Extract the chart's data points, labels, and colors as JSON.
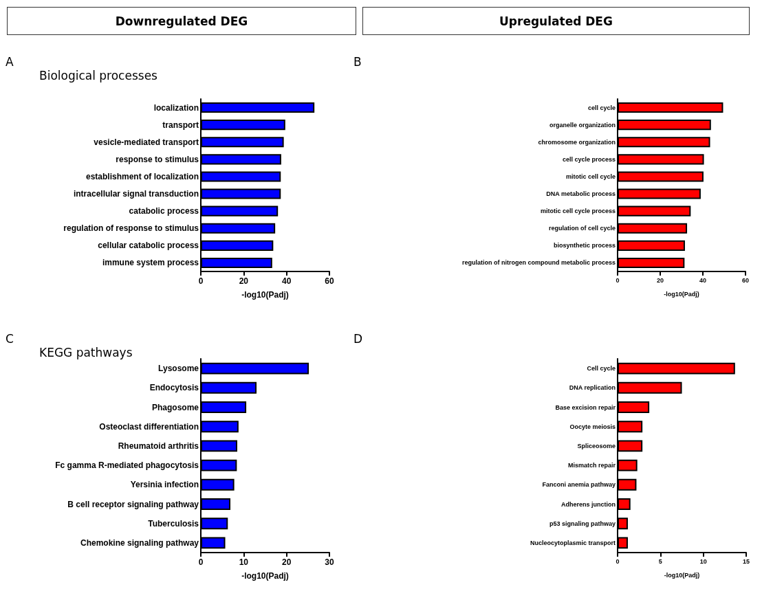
{
  "chart_data": [
    {
      "type": "bar",
      "orientation": "horizontal",
      "title": "Biological processes",
      "annotations": [
        "A",
        "Downregulated DEG"
      ],
      "xlabel": "-log10(Padj)",
      "categories": [
        "localization",
        "transport",
        "vesicle-mediated transport",
        "response to stimulus",
        "establishment of localization",
        "intracellular signal transduction",
        "catabolic process",
        "regulation of response to stimulus",
        "cellular catabolic process",
        "immune system process"
      ],
      "values": [
        53,
        39.4,
        38.7,
        37.5,
        37.3,
        37.3,
        36,
        34.7,
        33.8,
        33.3
      ],
      "color": "#0000ff",
      "xlim": [
        0,
        60
      ],
      "xticks": [
        0,
        20,
        40,
        60
      ]
    },
    {
      "type": "bar",
      "orientation": "horizontal",
      "annotations": [
        "B",
        "Upregulated DEG"
      ],
      "xlabel": "-log10(Padj)",
      "categories": [
        "cell cycle",
        "organelle organization",
        "chromosome organization",
        "cell cycle process",
        "mitotic cell cycle",
        "DNA metabolic process",
        "mitotic cell cycle process",
        "regulation of cell cycle",
        "biosynthetic process",
        "regulation of nitrogen compound metabolic process"
      ],
      "values": [
        49.5,
        43.8,
        43.4,
        40.5,
        40.3,
        39,
        34.3,
        32.6,
        31.6,
        31.4
      ],
      "color": "#ff0000",
      "xlim": [
        0,
        60
      ],
      "xticks": [
        0,
        20,
        40,
        60
      ]
    },
    {
      "type": "bar",
      "orientation": "horizontal",
      "title": "KEGG pathways",
      "annotations": [
        "C"
      ],
      "xlabel": "-log10(Padj)",
      "categories": [
        "Lysosome",
        "Endocytosis",
        "Phagosome",
        "Osteoclast differentiation",
        "Rheumatoid arthritis",
        "Fc gamma R-mediated phagocytosis",
        "Yersinia infection",
        "B cell receptor signaling pathway",
        "Tuberculosis",
        "Chemokine signaling pathway"
      ],
      "values": [
        25.2,
        13,
        10.6,
        8.8,
        8.5,
        8.4,
        7.8,
        6.9,
        6.3,
        5.7
      ],
      "color": "#0000ff",
      "xlim": [
        0,
        30
      ],
      "xticks": [
        0,
        10,
        20,
        30
      ]
    },
    {
      "type": "bar",
      "orientation": "horizontal",
      "annotations": [
        "D"
      ],
      "xlabel": "-log10(Padj)",
      "categories": [
        "Cell cycle",
        "DNA replication",
        "Base excision repair",
        "Oocyte meiosis",
        "Spliceosome",
        "Mismatch repair",
        "Fanconi anemia pathway",
        "Adherens junction",
        "p53 signaling pathway",
        "Nucleocytoplasmic transport"
      ],
      "values": [
        13.7,
        7.5,
        3.7,
        2.9,
        2.9,
        2.3,
        2.2,
        1.5,
        1.2,
        1.2
      ],
      "color": "#ff0000",
      "xlim": [
        0,
        15
      ],
      "xticks": [
        0,
        5,
        10,
        15
      ]
    }
  ]
}
